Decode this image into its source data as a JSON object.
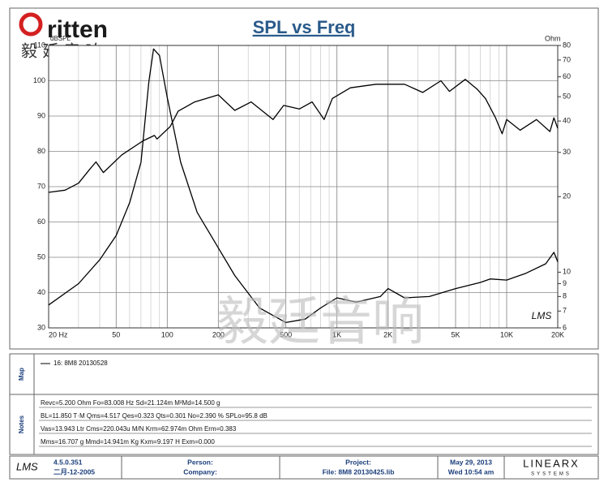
{
  "chart_data": {
    "type": "line",
    "title": "SPL vs Freq",
    "y_label": "dBSPL",
    "y2_label": "Ohm",
    "x_scale": "log",
    "y2_scale": "log",
    "grid": true,
    "xlim": [
      20,
      20000
    ],
    "xticks": [
      {
        "value": 20,
        "label": "20 Hz"
      },
      50,
      100,
      200,
      500,
      {
        "value": 1000,
        "label": "1K"
      },
      {
        "value": 2000,
        "label": "2K"
      },
      {
        "value": 5000,
        "label": "5K"
      },
      {
        "value": 10000,
        "label": "10K"
      },
      {
        "value": 20000,
        "label": "20K"
      }
    ],
    "ylim": [
      30,
      110
    ],
    "yticks": [
      30,
      40,
      50,
      60,
      70,
      80,
      90,
      100,
      110
    ],
    "y2lim": [
      6,
      80
    ],
    "y2ticks": [
      6,
      7,
      8,
      9,
      10,
      20,
      30,
      40,
      50,
      60,
      70,
      80
    ],
    "series": [
      {
        "name": "16: 8M8  20130528",
        "color": "#000000",
        "x": [
          20,
          25,
          30,
          35,
          38,
          42,
          54,
          72,
          84,
          87,
          104,
          116,
          145,
          200,
          250,
          312,
          420,
          485,
          600,
          714,
          840,
          940,
          1200,
          1700,
          2500,
          3200,
          4100,
          4600,
          5700,
          6700,
          7500,
          8600,
          9400,
          10000,
          12000,
          15000,
          18000,
          19000,
          20000
        ],
        "values": [
          68.4,
          69,
          71,
          75,
          77,
          74,
          79,
          83,
          84.5,
          83.5,
          87,
          91.4,
          94,
          96,
          91.6,
          94,
          89,
          93,
          92,
          94,
          89,
          95,
          98,
          99,
          99,
          96.7,
          100,
          97,
          100.4,
          97.6,
          95,
          89.5,
          85,
          89,
          86,
          89,
          85.6,
          89.5,
          86.5
        ]
      },
      {
        "color": "#000000",
        "axis": "y2",
        "x": [
          20,
          30,
          40,
          50,
          60,
          70,
          78,
          83,
          90,
          100,
          120,
          150,
          200,
          250,
          350,
          500,
          650,
          800,
          1000,
          1300,
          1800,
          2000,
          2500,
          3500,
          5000,
          7000,
          8000,
          10000,
          13000,
          17000,
          19000,
          20000
        ],
        "values": [
          7.4,
          9,
          11.2,
          14,
          18.9,
          27.4,
          57.6,
          77.5,
          73,
          49.7,
          27.4,
          17.3,
          12.5,
          9.7,
          7.2,
          6.3,
          6.5,
          7.2,
          7.9,
          7.6,
          8,
          8.6,
          7.9,
          8,
          8.6,
          9.1,
          9.4,
          9.3,
          9.9,
          10.8,
          12,
          11
        ]
      }
    ]
  },
  "logo": {
    "brand": "ritten",
    "chinese": "毅 廷 音 响"
  },
  "watermark": "毅廷音响",
  "plot_logo": "LMS",
  "map": {
    "label": "Map"
  },
  "notes": {
    "label": "Notes",
    "lines": [
      "Revc=5.200 Ohm  Fo=83.008 Hz  Sd=21.124m M²Md=14.500 g",
      "BL=11.850 T·M  Qms=4.517  Qes=0.323  Qts=0.301  No=2.390 %  SPLo=95.8 dB",
      "Vas=13.943 Ltr  Cms=220.043u M/N  Krm=62.974m Ohm  Erm=0.383",
      "Mms=16.707 g  Mmd=14.941m Kg  Kxm=9.197 H  Exm=0.000"
    ]
  },
  "footer": {
    "lms": "LMS",
    "version": "4.5.0.351",
    "version_date": "二月-12-2005",
    "person": "Person:",
    "company": "Company:",
    "project": "Project:",
    "file": "File: 8M8 20130425.lib",
    "date": "May 29, 2013",
    "time": "Wed 10:54 am",
    "vendor": "LINEARX",
    "vendor_sub": "SYSTEMS"
  }
}
